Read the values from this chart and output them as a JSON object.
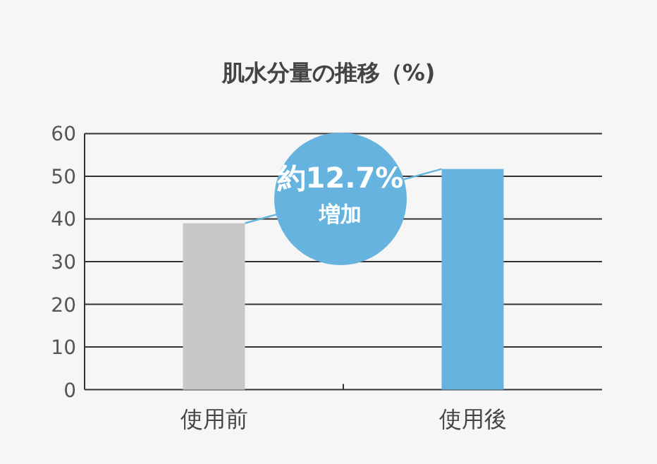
{
  "chart_data": {
    "type": "bar",
    "title": "肌水分量の推移（%)",
    "categories": [
      "使用前",
      "使用後"
    ],
    "values": [
      39,
      51.7
    ],
    "colors": [
      "#c8c8c8",
      "#66b3df"
    ],
    "ylim": [
      0,
      60
    ],
    "yticks": [
      0,
      10,
      20,
      30,
      40,
      50,
      60
    ],
    "grid": "y",
    "annotations": [
      "約12.7%",
      "増加"
    ]
  }
}
